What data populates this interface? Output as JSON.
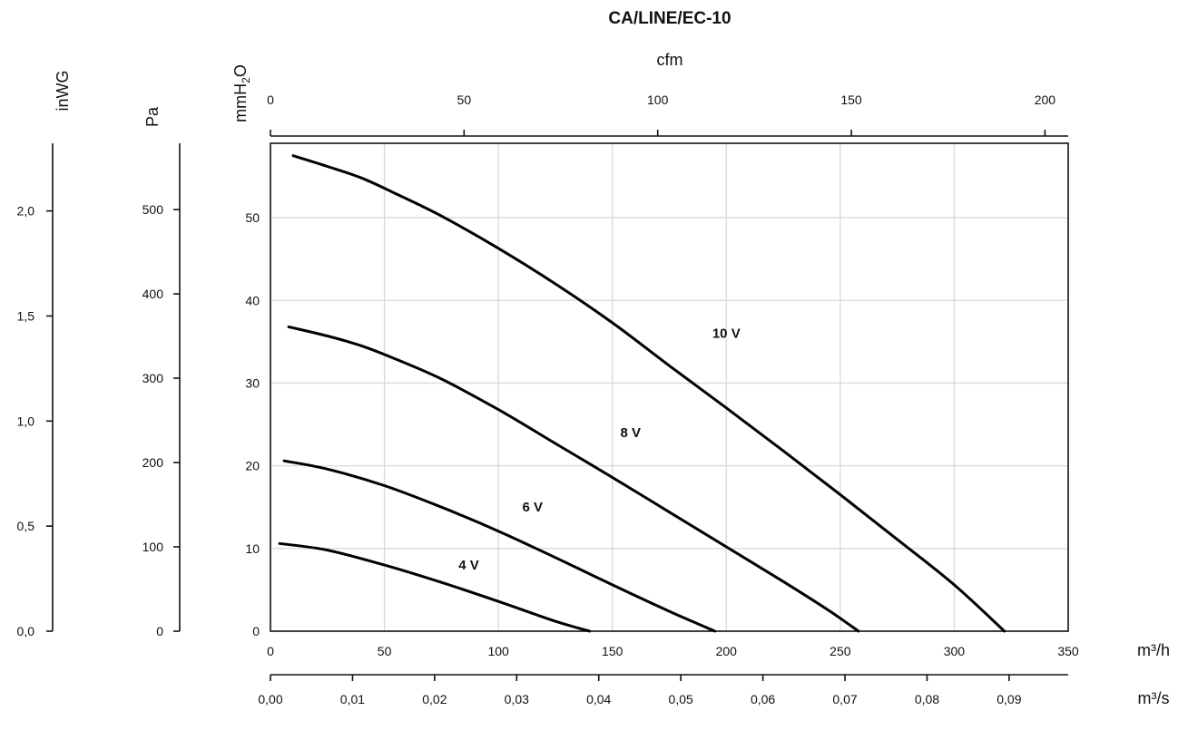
{
  "chart_data": {
    "type": "line",
    "title": "CA/LINE/EC-10",
    "x_primary": {
      "label": "m³/h",
      "range": [
        0,
        350
      ],
      "ticks": [
        "0",
        "50",
        "100",
        "150",
        "200",
        "250",
        "300",
        "350"
      ]
    },
    "x_m3s": {
      "label": "m³/s",
      "range": [
        0,
        0.0972
      ],
      "ticks": [
        "0,00",
        "0,01",
        "0,02",
        "0,03",
        "0,04",
        "0,05",
        "0,06",
        "0,07",
        "0,08",
        "0,09"
      ]
    },
    "x_cfm": {
      "label": "cfm",
      "range": [
        0,
        206
      ],
      "ticks": [
        "0",
        "50",
        "100",
        "150",
        "200"
      ]
    },
    "y_primary": {
      "label": "mmH2O",
      "range": [
        0,
        59
      ],
      "ticks": [
        "0",
        "10",
        "20",
        "30",
        "40",
        "50"
      ]
    },
    "y_pa": {
      "label": "Pa",
      "range": [
        0,
        578.6
      ],
      "ticks": [
        "0",
        "100",
        "200",
        "300",
        "400",
        "500"
      ]
    },
    "y_inwg": {
      "label": "inWG",
      "range": [
        0,
        2.322
      ],
      "ticks": [
        "0,0",
        "0,5",
        "1,0",
        "1,5",
        "2,0"
      ]
    },
    "grid": true,
    "series": [
      {
        "name": "10 V",
        "label_at": [
          200,
          36
        ],
        "x": [
          10,
          25,
          40,
          55,
          75,
          100,
          125,
          150,
          175,
          200,
          225,
          250,
          275,
          300,
          322
        ],
        "y": [
          57.5,
          56.2,
          54.8,
          52.9,
          50.2,
          46.3,
          42.0,
          37.3,
          32.1,
          27.0,
          21.8,
          16.5,
          11.1,
          5.6,
          0
        ]
      },
      {
        "name": "8 V",
        "label_at": [
          158,
          24
        ],
        "x": [
          8,
          25,
          40,
          55,
          75,
          100,
          125,
          150,
          175,
          200,
          225,
          245,
          258
        ],
        "y": [
          36.8,
          35.7,
          34.5,
          32.9,
          30.5,
          26.8,
          22.7,
          18.6,
          14.4,
          10.2,
          6.0,
          2.5,
          0
        ]
      },
      {
        "name": "6 V",
        "label_at": [
          115,
          15
        ],
        "x": [
          6,
          25,
          50,
          75,
          100,
          125,
          150,
          175,
          195
        ],
        "y": [
          20.6,
          19.6,
          17.6,
          15.0,
          12.1,
          8.9,
          5.6,
          2.4,
          0
        ]
      },
      {
        "name": "4 V",
        "label_at": [
          87,
          8
        ],
        "x": [
          4,
          25,
          50,
          75,
          100,
          125,
          140
        ],
        "y": [
          10.6,
          9.8,
          8.0,
          5.9,
          3.6,
          1.2,
          0
        ]
      }
    ]
  }
}
